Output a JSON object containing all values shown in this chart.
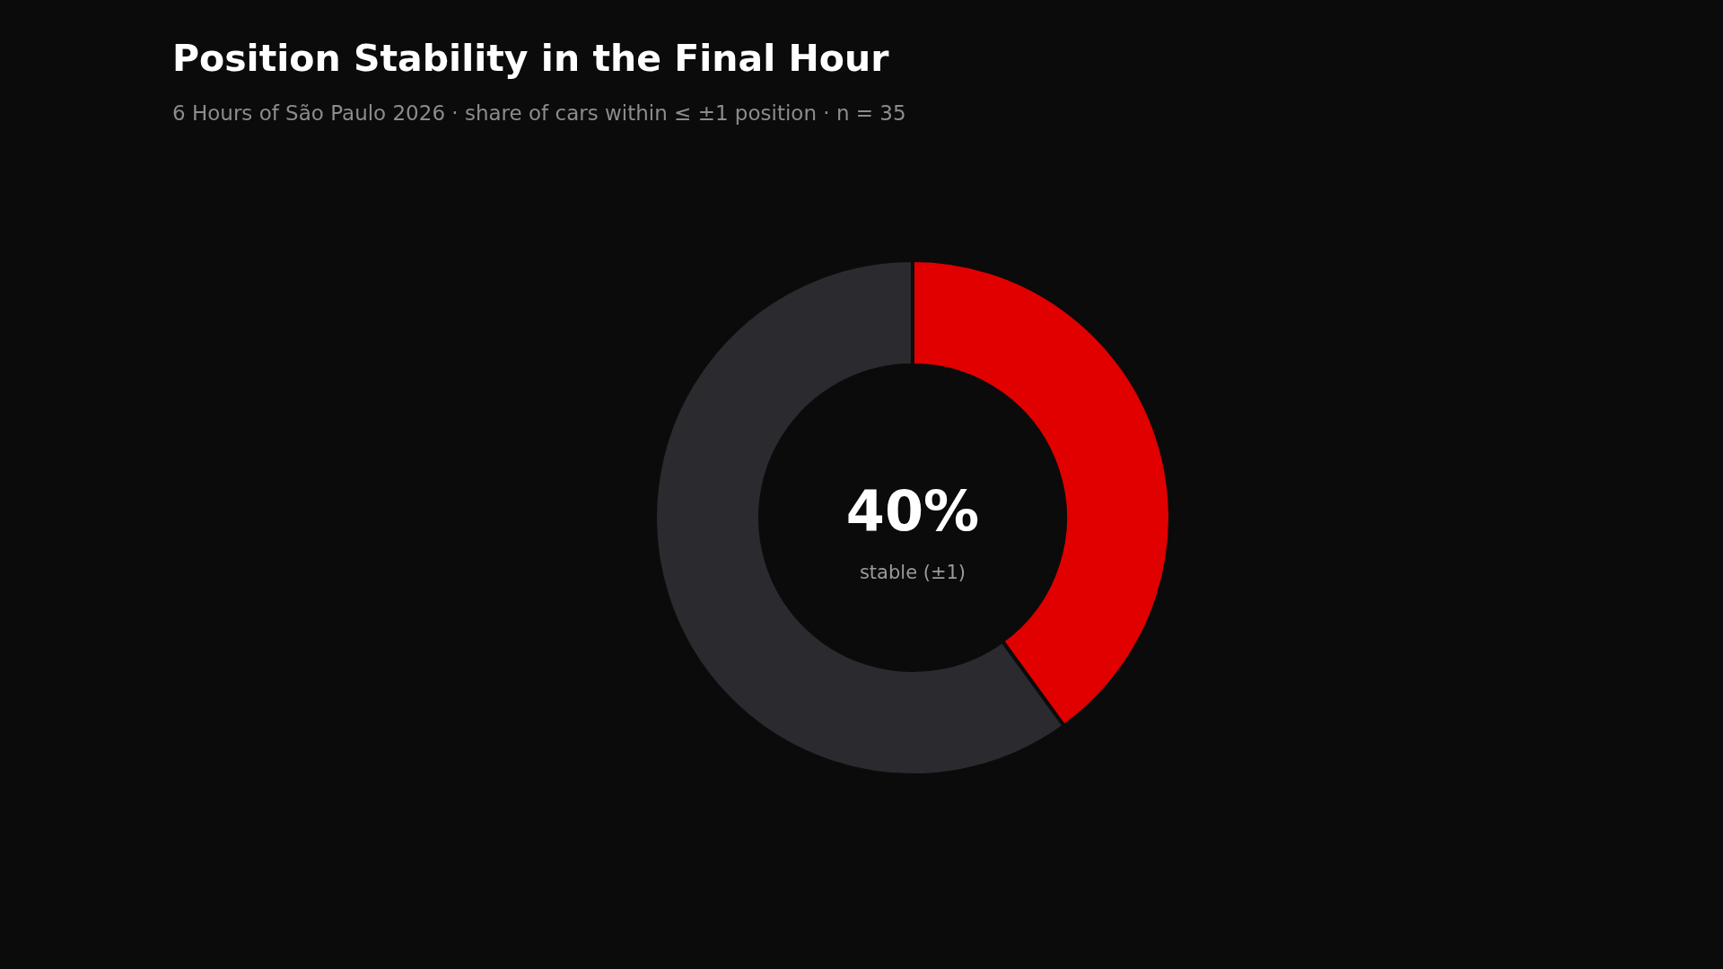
{
  "chart_data": {
    "type": "donut",
    "title": "Position Stability in the Final Hour",
    "subtitle": "6 Hours of São Paulo 2026 · share of cars within ≤ ±1 position · n = 35",
    "categories": [
      null,
      null
    ],
    "values": [
      40,
      60
    ],
    "colors": [
      "#e00000",
      "#2a2a2f"
    ],
    "annotations": [
      "40%",
      "stable (±1)"
    ]
  }
}
